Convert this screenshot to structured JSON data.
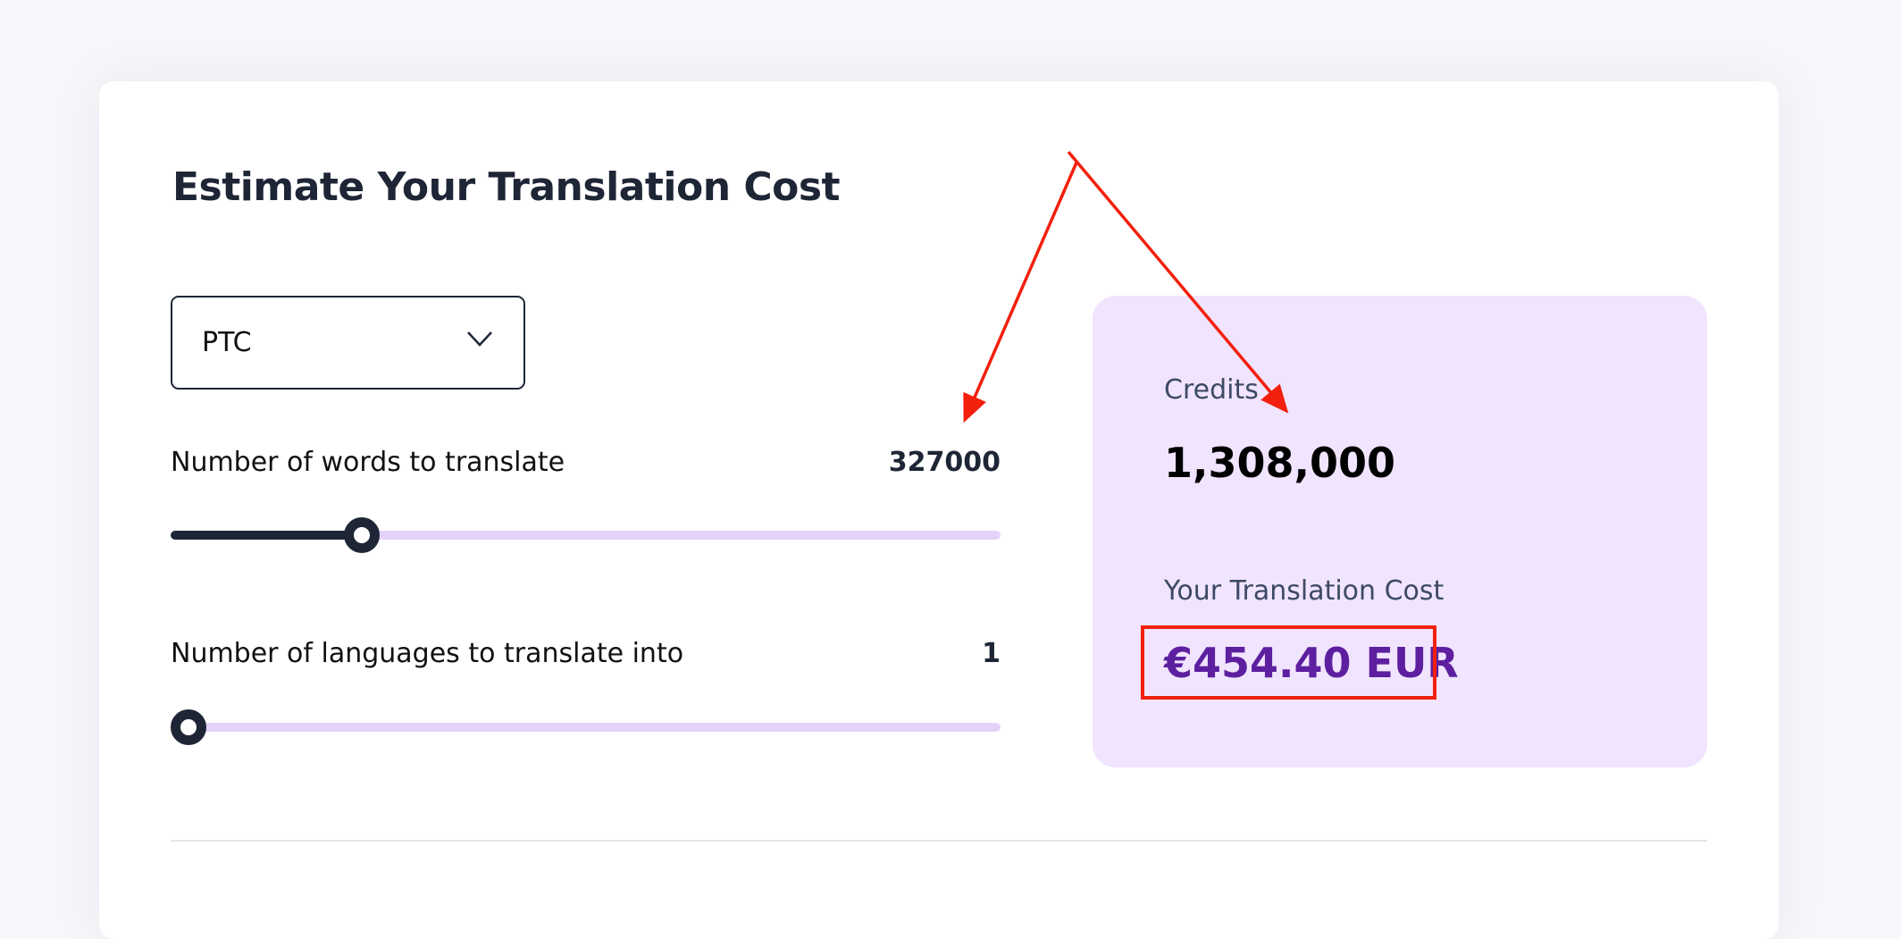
{
  "calculator": {
    "title": "Estimate Your Translation Cost",
    "dropdown": {
      "selected": "PTC",
      "icon": "chevron-down-icon"
    },
    "words": {
      "label": "Number of words to translate",
      "value": "327000",
      "slider_fraction": 0.23
    },
    "languages": {
      "label": "Number of languages to translate into",
      "value": "1",
      "slider_fraction": 0.0
    }
  },
  "summary": {
    "credits_label": "Credits",
    "credits_value": "1,308,000",
    "cost_label": "Your Translation Cost",
    "cost_value": "€454.40 EUR"
  },
  "colors": {
    "accent": "#5d1fa0",
    "panel": "#f1e4fe",
    "annotation": "#f2200d",
    "track": "#e5d2fb",
    "dark": "#1e2636"
  }
}
